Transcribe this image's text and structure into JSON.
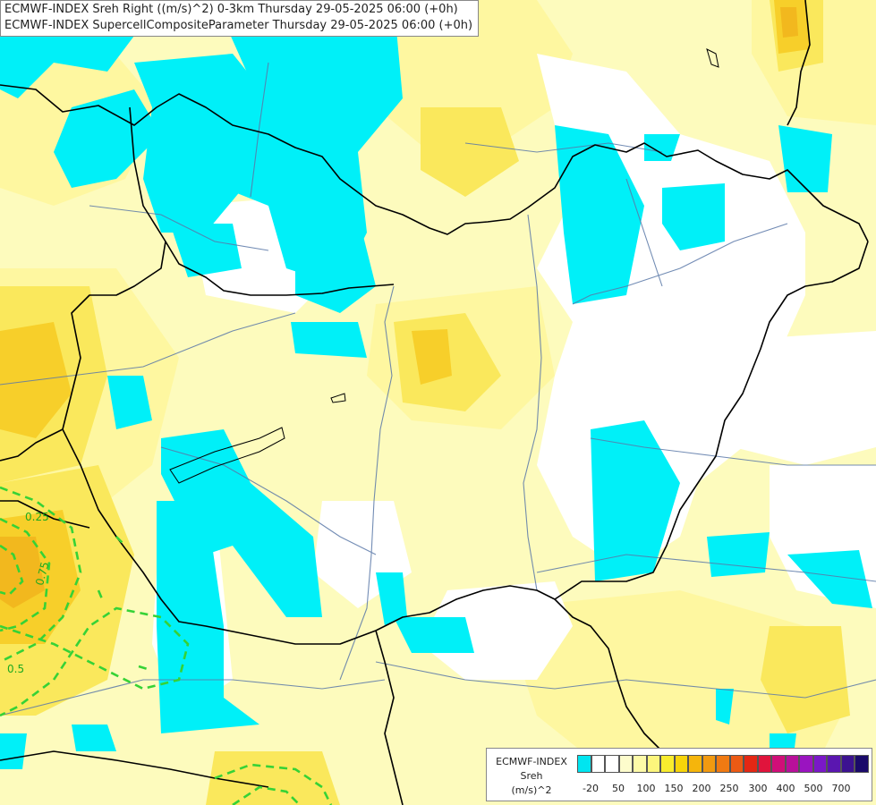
{
  "title": {
    "line1": "ECMWF-INDEX Sreh Right ((m/s)^2) 0-3km Thursday 29-05-2025 06:00 (+0h)",
    "line2": "ECMWF-INDEX SupercellCompositeParameter Thursday 29-05-2025 06:00 (+0h)"
  },
  "legend": {
    "name_line1": "ECMWF-INDEX",
    "name_line2": "Sreh",
    "name_line3": "(m/s)^2",
    "colors": [
      "#00e5f0",
      "#ffffff",
      "#ffffff",
      "#fdfccc",
      "#fdfaa8",
      "#fcf57c",
      "#f8ec2e",
      "#f7d40a",
      "#f5b50c",
      "#f29a10",
      "#f07a12",
      "#ec5a14",
      "#e42714",
      "#e0143c",
      "#d00e78",
      "#b8109a",
      "#9a14c0",
      "#7a18c8",
      "#5a16b0",
      "#3c1290",
      "#1a0a6a"
    ],
    "ticks": [
      "-20",
      "50",
      "100",
      "150",
      "200",
      "250",
      "300",
      "400",
      "500",
      "700"
    ]
  },
  "map": {
    "colors": {
      "cyan": "#00f0f8",
      "pale_yellow": "#fdfbbd",
      "light_yellow": "#fef7a0",
      "yellow": "#fae85c",
      "gold": "#f7cf2a",
      "orange": "#f2b81e",
      "contour": "#36d236",
      "border": "#000000",
      "river": "#5a78a8"
    },
    "contour_labels": [
      "0.25",
      "0.75",
      "0.5"
    ]
  }
}
